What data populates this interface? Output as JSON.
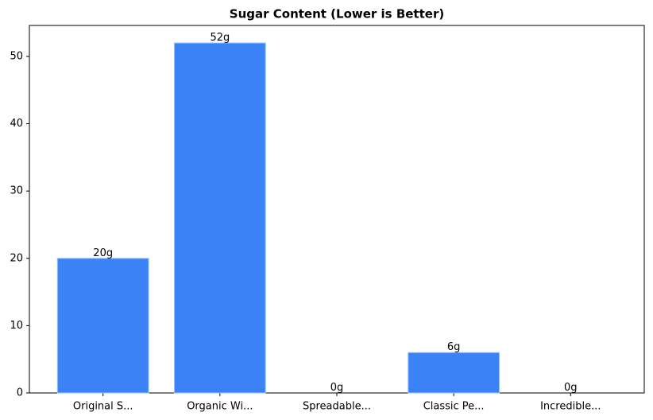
{
  "chart_data": {
    "type": "bar",
    "title": "Sugar Content (Lower is Better)",
    "categories": [
      "Original S...",
      "Organic Wi...",
      "Spreadable...",
      "Classic Pe...",
      "Incredible..."
    ],
    "values": [
      20,
      52,
      0,
      6,
      0
    ],
    "value_labels": [
      "20g",
      "52g",
      "0g",
      "6g",
      "0g"
    ],
    "color": "#3b82f6",
    "ylim": [
      0,
      54.6
    ],
    "yticks": [
      0,
      10,
      20,
      30,
      40,
      50
    ],
    "grid": false
  }
}
